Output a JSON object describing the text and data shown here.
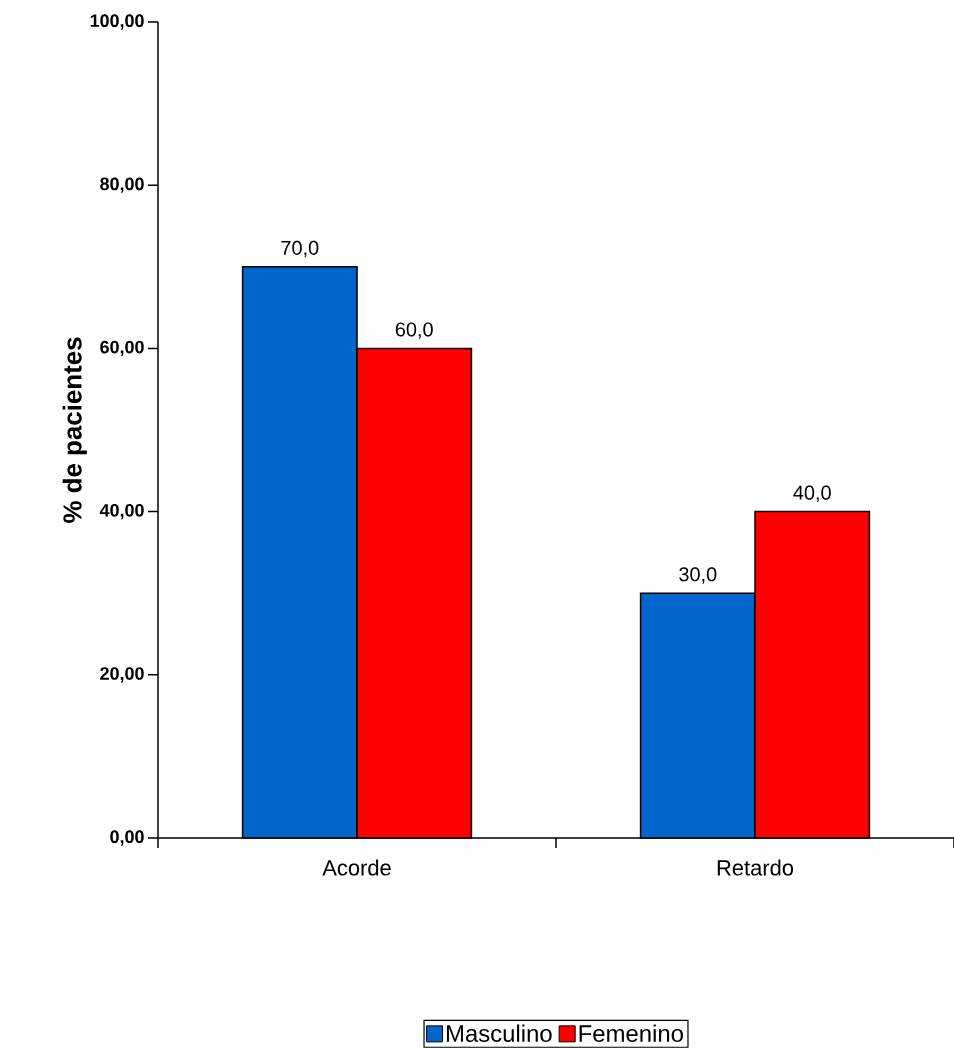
{
  "chart_data": {
    "type": "bar",
    "ylabel": "% de pacientes",
    "categories": [
      "Acorde",
      "Retardo"
    ],
    "series": [
      {
        "name": "Masculino",
        "color": "#0066cc",
        "values": [
          70,
          30
        ],
        "value_labels": [
          "70,0",
          "30,0"
        ]
      },
      {
        "name": "Femenino",
        "color": "#ff0000",
        "values": [
          60,
          40
        ],
        "value_labels": [
          "60,0",
          "40,0"
        ]
      }
    ],
    "ylim": [
      0,
      100
    ],
    "yticks": [
      {
        "value": 0,
        "label": "0,00"
      },
      {
        "value": 20,
        "label": "20,00"
      },
      {
        "value": 40,
        "label": "40,00"
      },
      {
        "value": 60,
        "label": "60,00"
      },
      {
        "value": 80,
        "label": "80,00"
      },
      {
        "value": 100,
        "label": "100,00"
      }
    ],
    "grid": false,
    "legend": "bottom"
  }
}
